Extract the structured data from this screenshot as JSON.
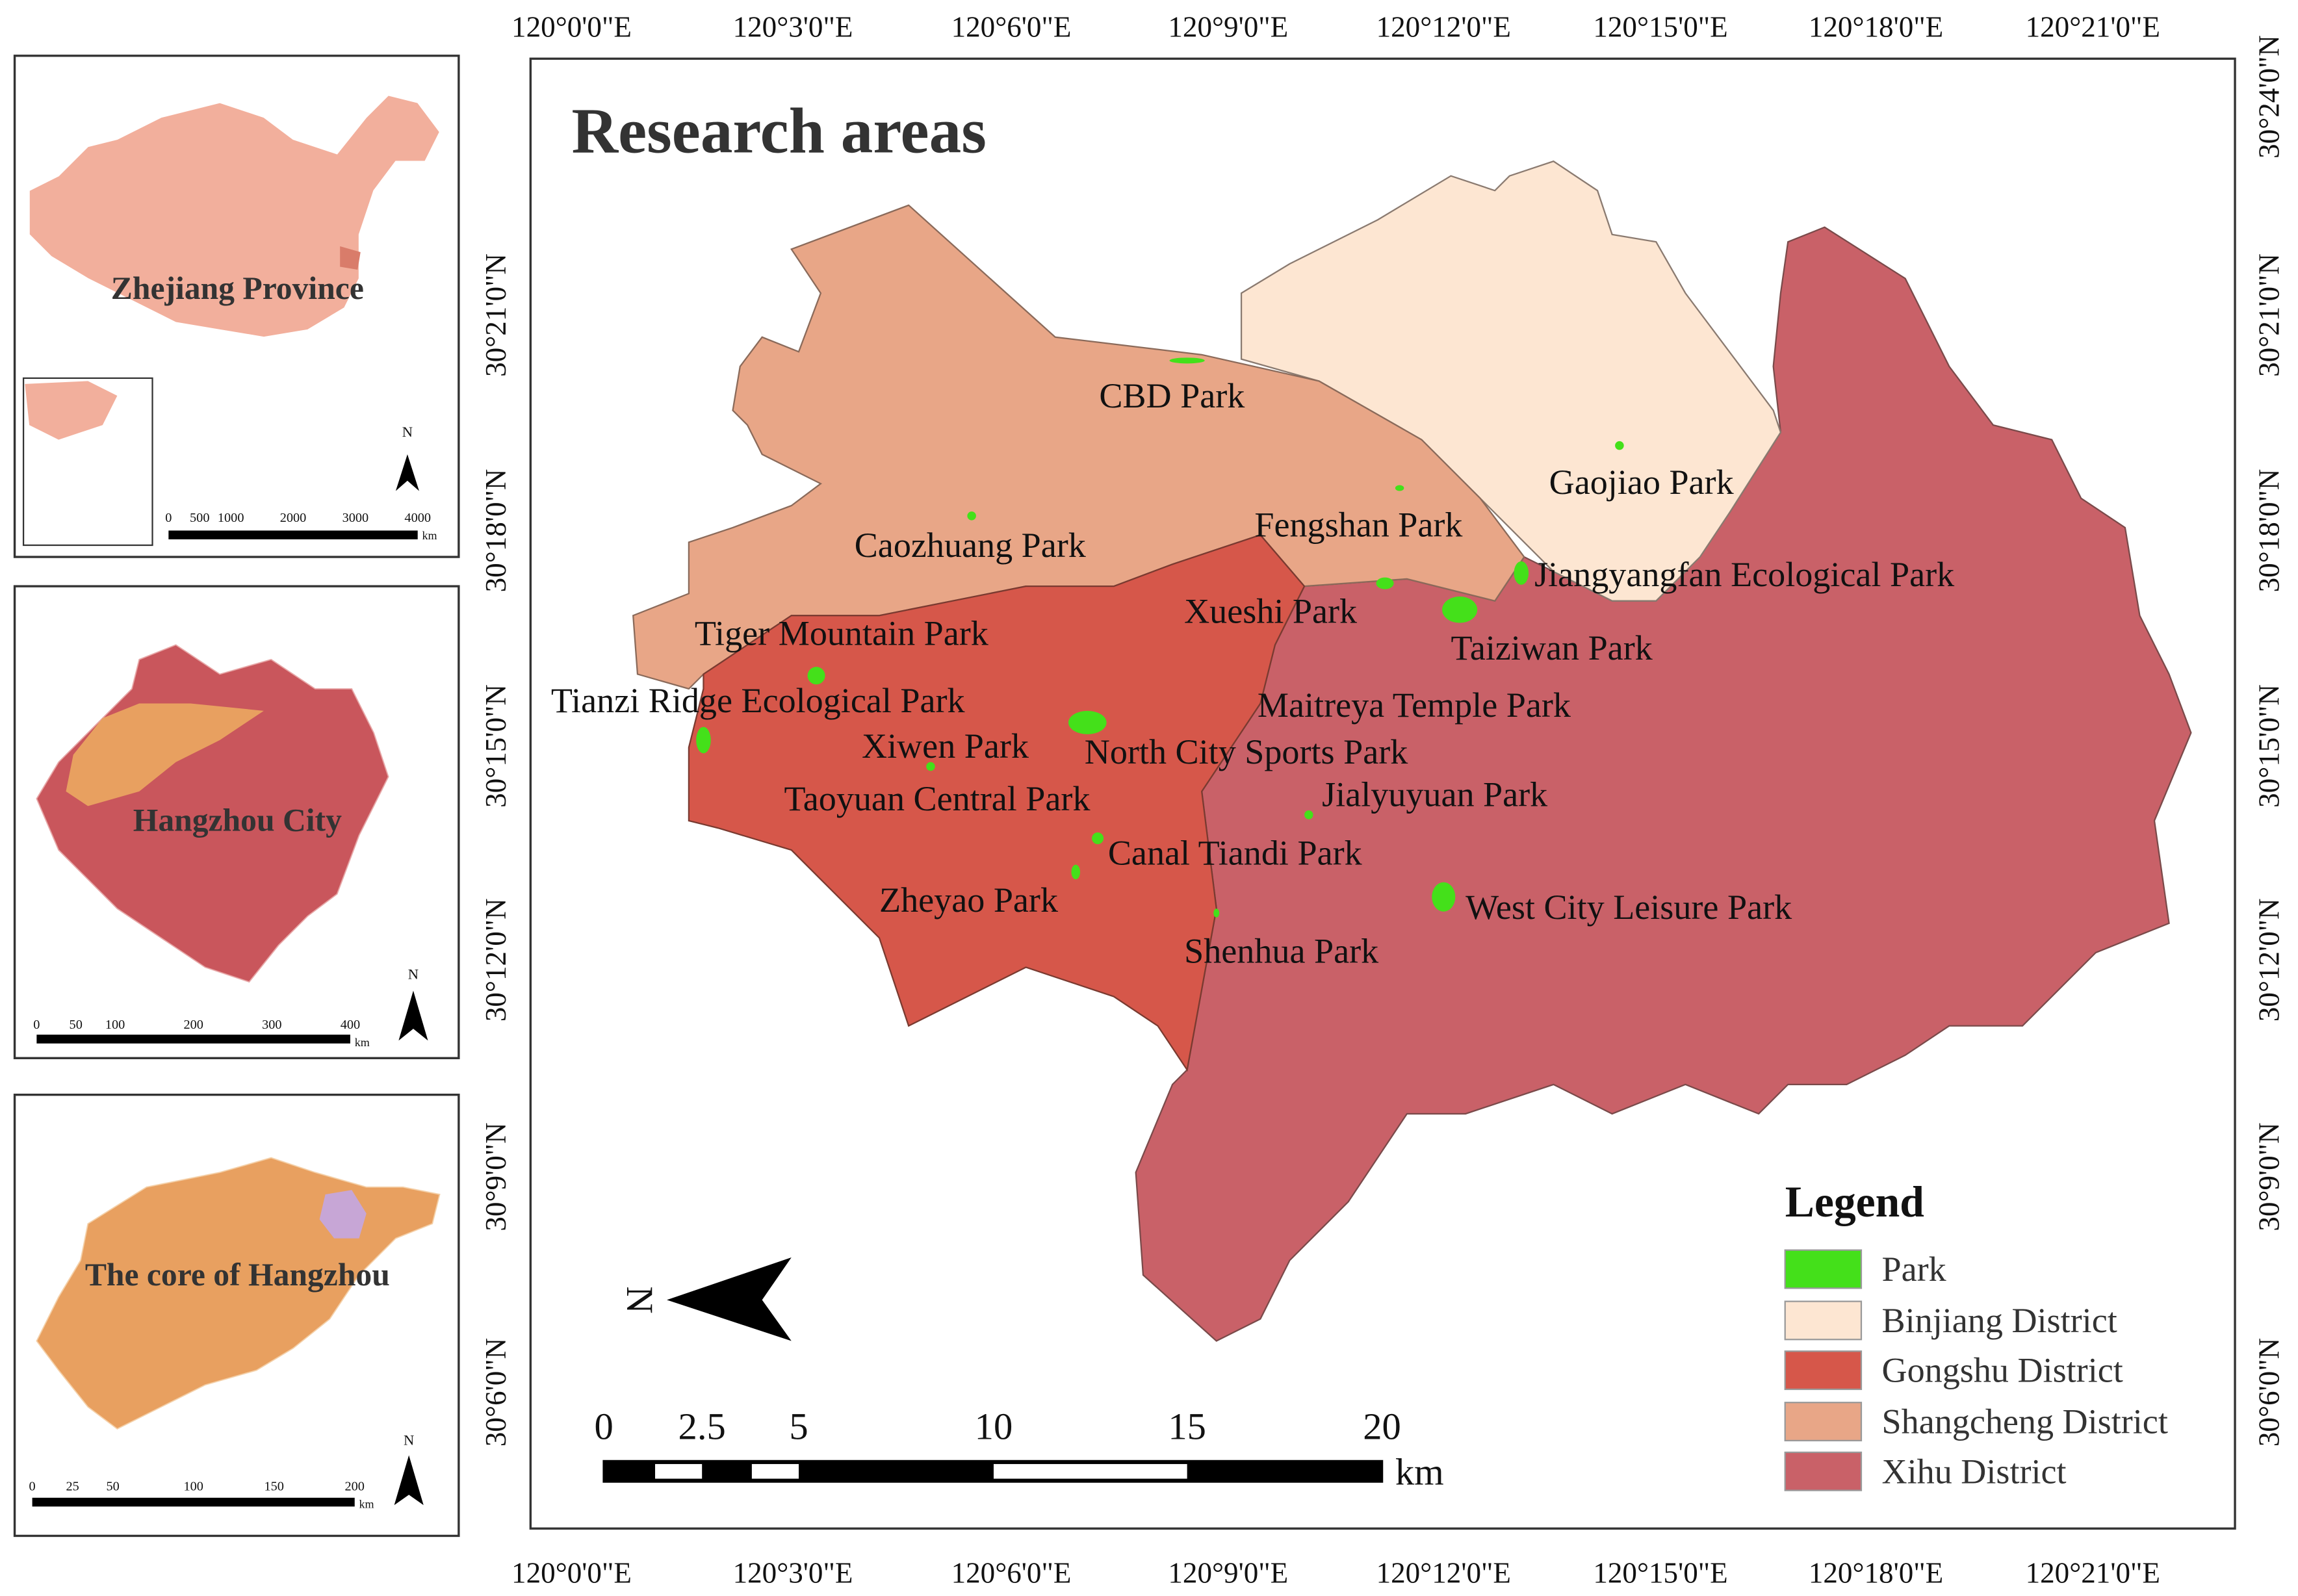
{
  "title": "Research areas",
  "insets": [
    {
      "label": "Zhejiang Province",
      "scale": [
        "0",
        "500",
        "1000",
        "2000",
        "3000",
        "4000"
      ],
      "unit": "km",
      "north": "N"
    },
    {
      "label": "Hangzhou City",
      "scale": [
        "0",
        "50",
        "100",
        "200",
        "300",
        "400"
      ],
      "unit": "km",
      "north": "N"
    },
    {
      "label": "The core of Hangzhou",
      "scale": [
        "0",
        "25",
        "50",
        "100",
        "150",
        "200"
      ],
      "unit": "km",
      "north": "N"
    }
  ],
  "coordinates": {
    "top": [
      "120°0'0\"E",
      "120°3'0\"E",
      "120°6'0\"E",
      "120°9'0\"E",
      "120°12'0\"E",
      "120°15'0\"E",
      "120°18'0\"E",
      "120°21'0\"E"
    ],
    "bottom": [
      "120°0'0\"E",
      "120°3'0\"E",
      "120°6'0\"E",
      "120°9'0\"E",
      "120°12'0\"E",
      "120°15'0\"E",
      "120°18'0\"E",
      "120°21'0\"E"
    ],
    "left": [
      "30°21'0\"N",
      "30°18'0\"N",
      "30°15'0\"N",
      "30°12'0\"N",
      "30°9'0\"N",
      "30°6'0\"N"
    ],
    "right": [
      "30°24'0\"N",
      "30°21'0\"N",
      "30°18'0\"N",
      "30°15'0\"N",
      "30°12'0\"N",
      "30°9'0\"N",
      "30°6'0\"N"
    ]
  },
  "parks": [
    "CBD Park",
    "Gaojiao Park",
    "Caozhuang Park",
    "Fengshan Park",
    "Jiangyangfan Ecological Park",
    "Xueshi Park",
    "Taiziwan Park",
    "Tiger Mountain Park",
    "Maitreya Temple Park",
    "Tianzi Ridge Ecological Park",
    "Xiwen Park",
    "North City Sports Park",
    "Jialyuyuan Park",
    "Taoyuan Central Park",
    "Canal Tiandi Park",
    "Zheyao Park",
    "West City Leisure Park",
    "Shenhua Park"
  ],
  "scale_bar": {
    "ticks": [
      "0",
      "2.5",
      "5",
      "10",
      "15",
      "20"
    ],
    "unit": "km"
  },
  "north": "N",
  "legend": {
    "title": "Legend",
    "items": [
      "Park",
      "Binjiang District",
      "Gongshu District",
      "Shangcheng District",
      "Xihu District"
    ]
  }
}
